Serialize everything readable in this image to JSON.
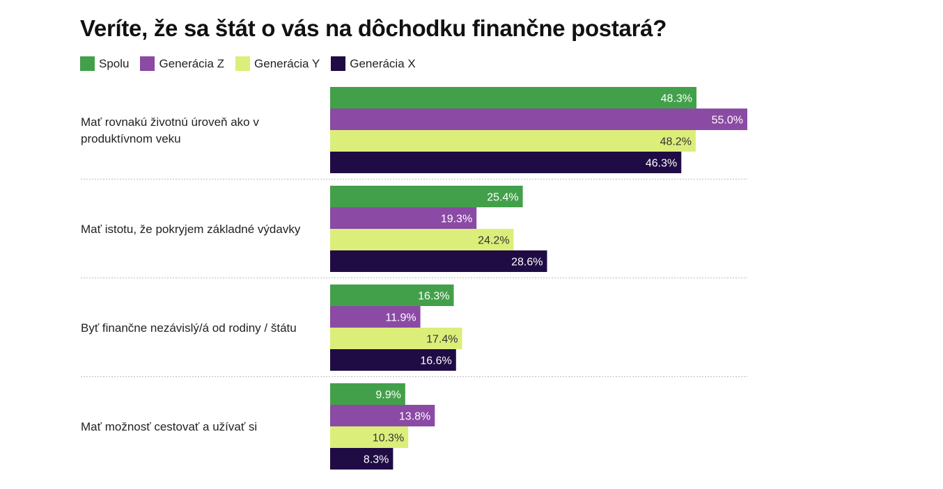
{
  "chart_data": {
    "type": "bar",
    "orientation": "horizontal",
    "title": "Veríte, že sa štát o vás na dôchodku finančne postará?",
    "categories": [
      [
        "Mať rovnakú životnú úroveň ako v",
        "produktívnom veku"
      ],
      [
        "Mať istotu, že pokryjem základné výdavky"
      ],
      [
        "Byť finančne nezávislý/á od rodiny / štátu"
      ],
      [
        "Mať možnosť cestovať a užívať si"
      ]
    ],
    "series": [
      {
        "name": "Spolu",
        "color": "#43a04a",
        "label_color": "#ffffff",
        "values": [
          48.3,
          25.4,
          16.3,
          9.9
        ]
      },
      {
        "name": "Generácia Z",
        "color": "#8b4aa4",
        "label_color": "#ffffff",
        "values": [
          55.0,
          19.3,
          11.9,
          13.8
        ]
      },
      {
        "name": "Generácia Y",
        "color": "#dcee7a",
        "label_color": "#333333",
        "values": [
          48.2,
          24.2,
          17.4,
          10.3
        ]
      },
      {
        "name": "Generácia X",
        "color": "#1f0c45",
        "label_color": "#ffffff",
        "values": [
          46.3,
          28.6,
          16.6,
          8.3
        ]
      }
    ],
    "value_suffix": "%",
    "xlim": [
      0,
      55
    ],
    "legend": "top-left",
    "grid": false
  }
}
